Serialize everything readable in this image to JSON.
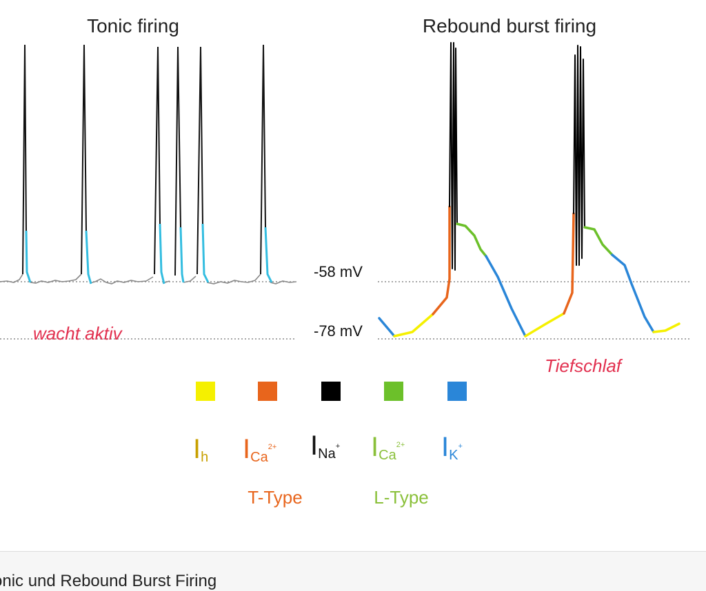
{
  "titles": {
    "tonic": "Tonic firing",
    "rebound": "Rebound burst firing"
  },
  "voltage_labels": {
    "upper": "-58 mV",
    "lower": "-78 mV"
  },
  "annotations": {
    "left_note": "wacht aktiv",
    "right_note": "Tiefschlaf"
  },
  "legend": {
    "items": [
      {
        "symbol": "I",
        "sub": "h",
        "sup": "",
        "swatch_color": "#f5f000",
        "text_color": "#c8a000"
      },
      {
        "symbol": "I",
        "sub": "Ca",
        "sup": "2+",
        "swatch_color": "#e8651c",
        "text_color": "#e8651c"
      },
      {
        "symbol": "I",
        "sub": "Na",
        "sup": "+",
        "swatch_color": "#000000",
        "text_color": "#111111"
      },
      {
        "symbol": "I",
        "sub": "Ca",
        "sup": "2+",
        "swatch_color": "#6cc02a",
        "text_color": "#8ac03a"
      },
      {
        "symbol": "I",
        "sub": "K",
        "sup": "+",
        "swatch_color": "#2a86d8",
        "text_color": "#2a86d8"
      }
    ],
    "type_labels": [
      {
        "text": "T-Type",
        "color": "#e8651c"
      },
      {
        "text": "L-Type",
        "color": "#8ac03a"
      }
    ]
  },
  "colors": {
    "trace_gray": "#888888",
    "tonic_repolarization": "#33bde0",
    "burst_k": "#2a86d8",
    "burst_h": "#f5f000",
    "burst_t_ca": "#e8651c",
    "burst_na": "#000000",
    "burst_l_ca": "#6cc02a"
  },
  "caption": "onic und Rebound Burst Firing"
}
